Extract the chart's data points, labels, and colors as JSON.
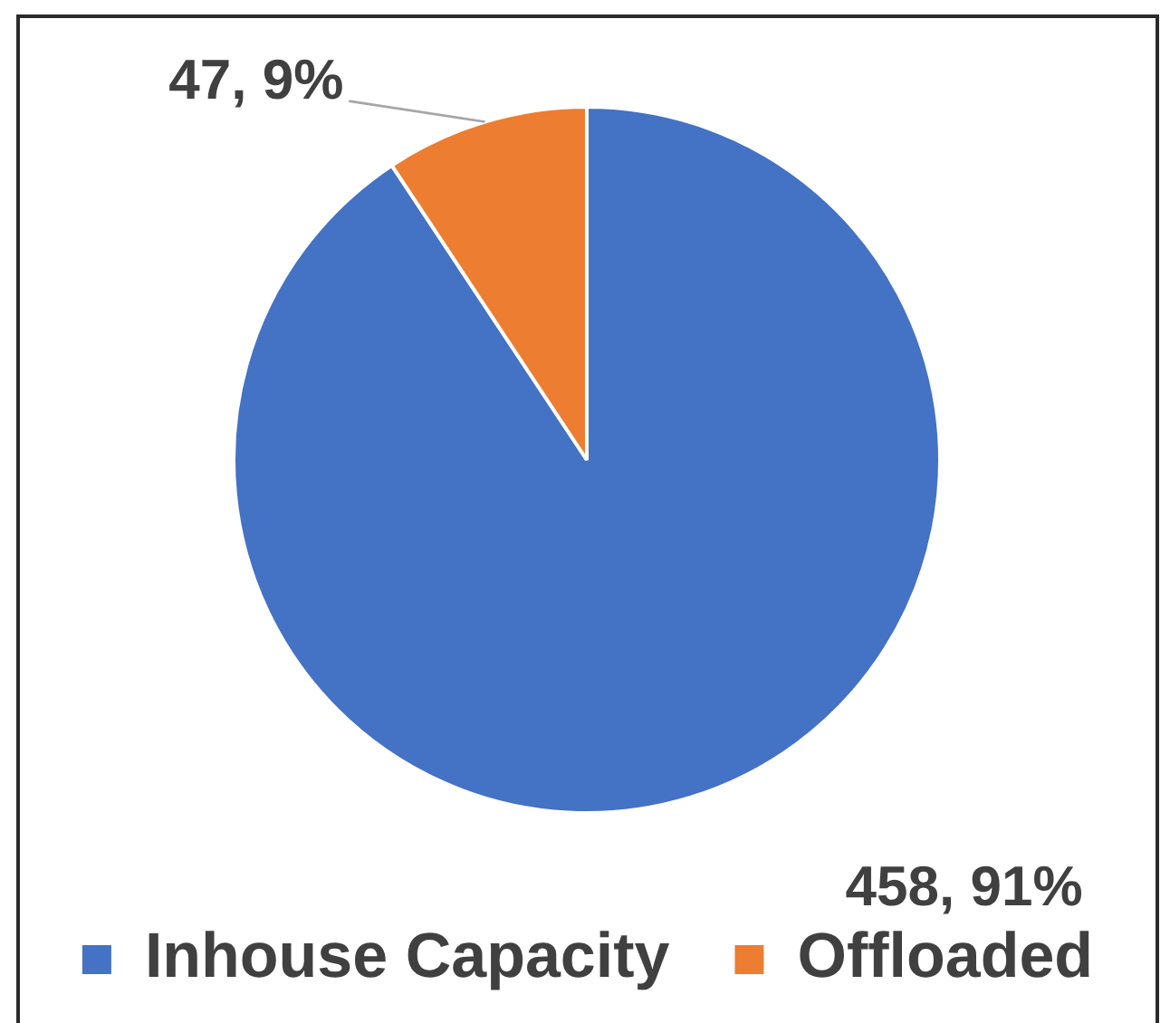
{
  "chart_data": {
    "type": "pie",
    "categories": [
      "Inhouse Capacity",
      "Offloaded"
    ],
    "values": [
      458,
      47
    ],
    "colors": [
      "#4472c4",
      "#ed7d31"
    ],
    "value_labels": [
      "458, 91%",
      "47, 9%"
    ],
    "legend": "bottom"
  }
}
